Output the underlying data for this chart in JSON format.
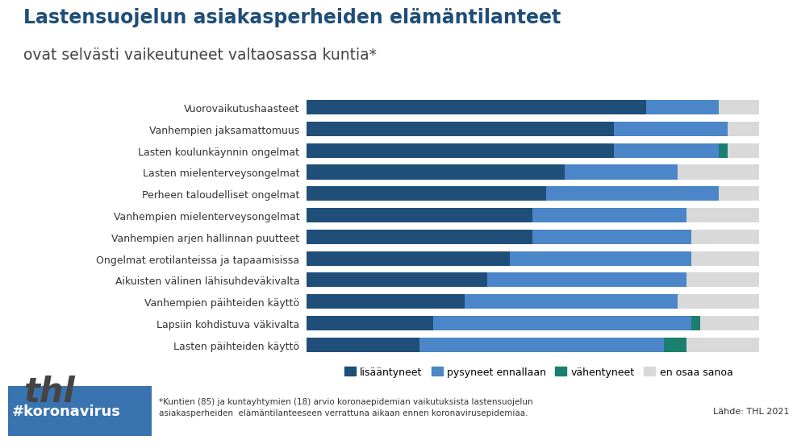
{
  "title_line1": "Lastensuojelun asiakasperheiden elämäntilanteet",
  "title_line2": "ovat selvästi vaikeutuneet valtaosassa kuntia*",
  "categories": [
    "Vuorovaikutushaasteet",
    "Vanhempien jaksamattomuus",
    "Lasten koulunkäynnin ongelmat",
    "Lasten mielenterveysongelmat",
    "Perheen taloudelliset ongelmat",
    "Vanhempien mielenterveysongelmat",
    "Vanhempien arjen hallinnan puutteet",
    "Ongelmat erotilanteissa ja tapaamisissa",
    "Aikuisten välinen lähisuhdeväkivalta",
    "Vanhempien päihteiden käyttö",
    "Lapsiin kohdistuva väkivalta",
    "Lasten päihteiden käyttö"
  ],
  "lisääntyneet": [
    75,
    68,
    68,
    57,
    53,
    50,
    50,
    45,
    40,
    35,
    28,
    25
  ],
  "pysyneet": [
    16,
    25,
    23,
    25,
    38,
    34,
    35,
    40,
    44,
    47,
    57,
    54
  ],
  "vähentyneet": [
    0,
    0,
    2,
    0,
    0,
    0,
    0,
    0,
    0,
    0,
    2,
    5
  ],
  "en_osaa_sanoa": [
    9,
    7,
    7,
    18,
    9,
    16,
    15,
    15,
    16,
    18,
    13,
    16
  ],
  "color_lisääntyneet": "#1f4e79",
  "color_pysyneet": "#4a86c8",
  "color_vähentyneet": "#1a7f6e",
  "color_en_osaa_sanoa": "#d9d9d9",
  "bg_color": "#ffffff",
  "footer_left_bg": "#4a86c8",
  "title1_color": "#1f4e79",
  "title2_color": "#444444",
  "thl_color": "#444444",
  "hashtag": "#koronavirus",
  "footnote": "*Kuntien (85) ja kuntayhtymien (18) arvio koronaepidemian vaikutuksista lastensuojelun\nasiakasperheiden  elämäntilanteeseen verrattuna aikaan ennen koronavirusepidemiaa.",
  "source": "Lähde: THL 2021"
}
